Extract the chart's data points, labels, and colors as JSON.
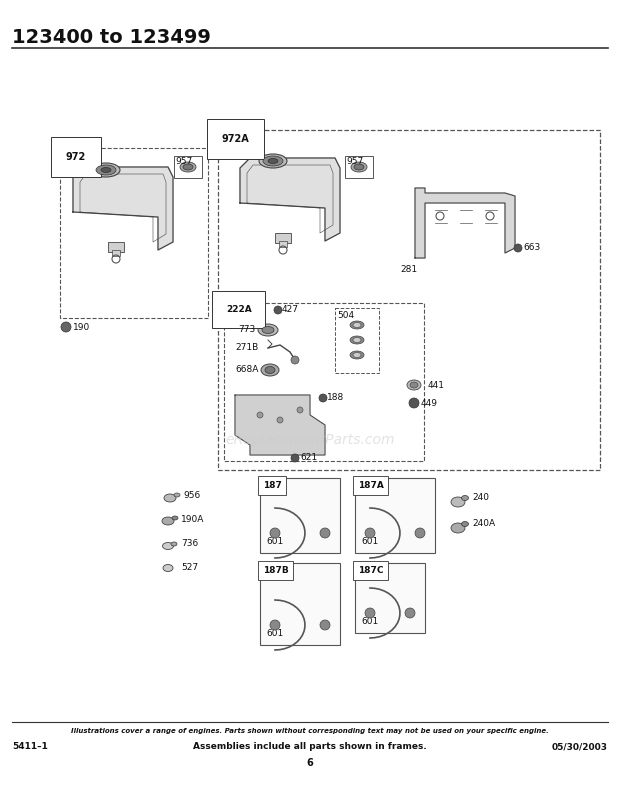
{
  "title": "123400 to 123499",
  "bg_color": "#ffffff",
  "footer_italic": "Illustrations cover a range of engines. Parts shown without corresponding text may not be used on your specific engine.",
  "footer_left": "5411–1",
  "footer_center": "Assemblies include all parts shown in frames.",
  "footer_right": "05/30/2003",
  "footer_page": "6",
  "watermark": "eReplacementParts.com",
  "lc": "#555555",
  "lw": 0.7
}
